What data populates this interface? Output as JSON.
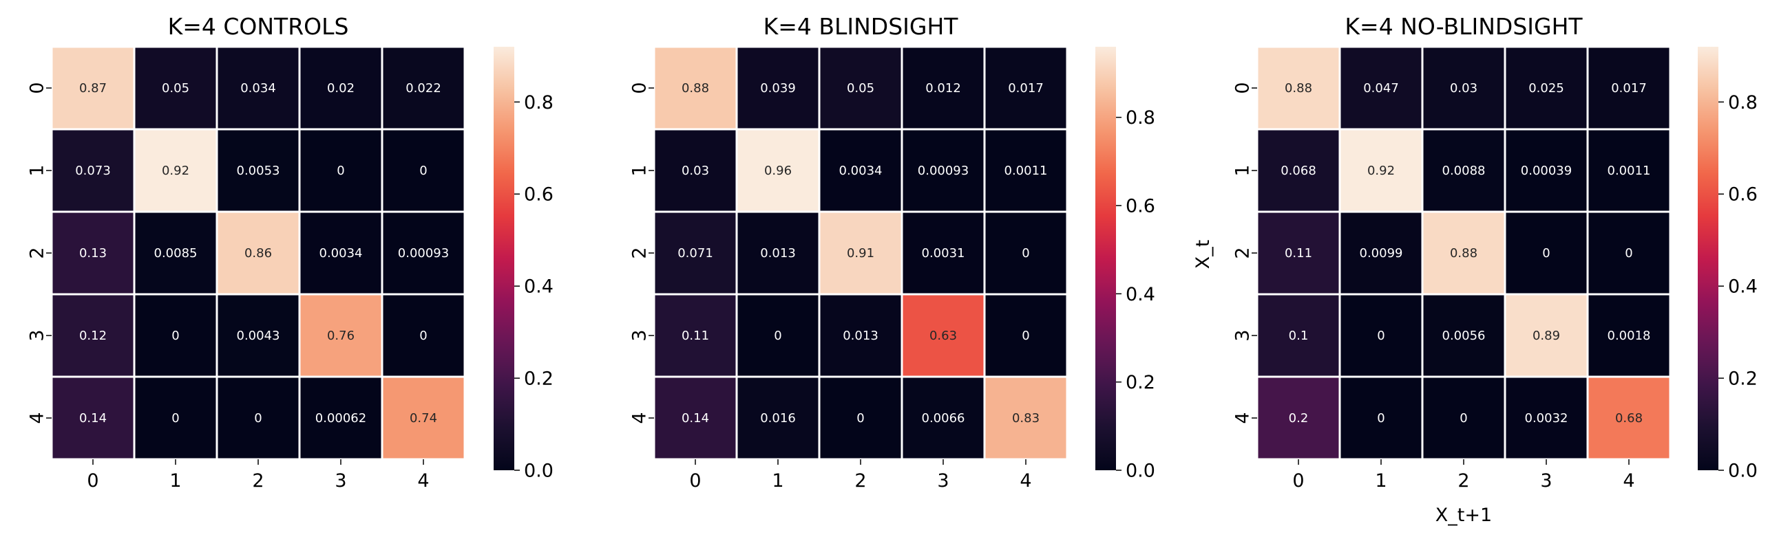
{
  "chart_data": [
    {
      "type": "heatmap",
      "title": "K=4 CONTROLS",
      "row_labels": [
        "0",
        "1",
        "2",
        "3",
        "4"
      ],
      "col_labels": [
        "0",
        "1",
        "2",
        "3",
        "4"
      ],
      "values": [
        [
          0.87,
          0.05,
          0.034,
          0.02,
          0.022
        ],
        [
          0.073,
          0.92,
          0.0053,
          0,
          0
        ],
        [
          0.13,
          0.0085,
          0.86,
          0.0034,
          0.00093
        ],
        [
          0.12,
          0,
          0.0043,
          0.76,
          0
        ],
        [
          0.14,
          0,
          0,
          0.00062,
          0.74
        ]
      ],
      "vmin": 0,
      "vmax": 0.92,
      "colorbar_ticks": [
        "0.0",
        "0.2",
        "0.4",
        "0.6",
        "0.8"
      ],
      "xlabel": "",
      "ylabel": ""
    },
    {
      "type": "heatmap",
      "title": "K=4 BLINDSIGHT",
      "row_labels": [
        "0",
        "1",
        "2",
        "3",
        "4"
      ],
      "col_labels": [
        "0",
        "1",
        "2",
        "3",
        "4"
      ],
      "values": [
        [
          0.88,
          0.039,
          0.05,
          0.012,
          0.017
        ],
        [
          0.03,
          0.96,
          0.0034,
          0.00093,
          0.0011
        ],
        [
          0.071,
          0.013,
          0.91,
          0.0031,
          0
        ],
        [
          0.11,
          0,
          0.013,
          0.63,
          0
        ],
        [
          0.14,
          0.016,
          0,
          0.0066,
          0.83
        ]
      ],
      "vmin": 0,
      "vmax": 0.96,
      "colorbar_ticks": [
        "0.0",
        "0.2",
        "0.4",
        "0.6",
        "0.8"
      ],
      "xlabel": "",
      "ylabel": ""
    },
    {
      "type": "heatmap",
      "title": "K=4 NO-BLINDSIGHT",
      "row_labels": [
        "0",
        "1",
        "2",
        "3",
        "4"
      ],
      "col_labels": [
        "0",
        "1",
        "2",
        "3",
        "4"
      ],
      "values": [
        [
          0.88,
          0.047,
          0.03,
          0.025,
          0.017
        ],
        [
          0.068,
          0.92,
          0.0088,
          0.00039,
          0.0011
        ],
        [
          0.11,
          0.0099,
          0.88,
          0,
          0
        ],
        [
          0.1,
          0,
          0.0056,
          0.89,
          0.0018
        ],
        [
          0.2,
          0,
          0,
          0.0032,
          0.68
        ]
      ],
      "vmin": 0,
      "vmax": 0.92,
      "colorbar_ticks": [
        "0.0",
        "0.2",
        "0.4",
        "0.6",
        "0.8"
      ],
      "xlabel": "X_t+1",
      "ylabel": "X_t"
    }
  ],
  "colormap": "rocket"
}
